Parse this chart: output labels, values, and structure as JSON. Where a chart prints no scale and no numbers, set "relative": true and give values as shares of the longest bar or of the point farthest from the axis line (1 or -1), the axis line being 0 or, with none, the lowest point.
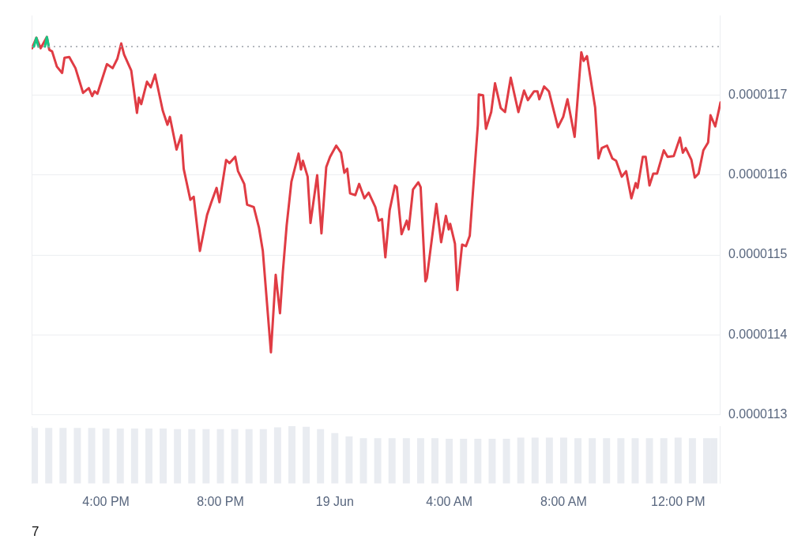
{
  "chart_data": [
    {
      "type": "line",
      "legend": false,
      "grid": "y",
      "tick_labels": "y",
      "marker": "none",
      "line_style": "solid",
      "xlim": [
        "--06-18T13:24",
        "--06-19T13:29"
      ],
      "ylim": [
        1.13e-05,
        1.18e-05
      ],
      "yticks": [
        {
          "value": 1.13e-05,
          "label": "0.0000113"
        },
        {
          "value": 1.14e-05,
          "label": "0.0000114"
        },
        {
          "value": 1.15e-05,
          "label": "0.0000115"
        },
        {
          "value": 1.16e-05,
          "label": "0.0000116"
        },
        {
          "value": 1.17e-05,
          "label": "0.0000117"
        }
      ],
      "ref_lines": [
        {
          "axis": "y",
          "value": 1.1761e-05,
          "color": "#9aa0a8",
          "line_style": "dotted"
        }
      ],
      "series": [
        {
          "color": "#e03c44",
          "x": [
            "--06-18T13:25",
            "--06-18T13:34",
            "--06-18T13:43",
            "--06-18T13:56",
            "--06-18T14:01",
            "--06-18T14:07",
            "--06-18T14:17",
            "--06-18T14:28",
            "--06-18T14:33",
            "--06-18T14:43",
            "--06-18T14:56",
            "--06-18T15:12",
            "--06-18T15:24",
            "--06-18T15:31",
            "--06-18T15:36",
            "--06-18T15:42",
            "--06-18T16:02",
            "--06-18T16:14",
            "--06-18T16:24",
            "--06-18T16:32",
            "--06-18T16:38",
            "--06-18T16:53",
            "--06-18T17:05",
            "--06-18T17:09",
            "--06-18T17:14",
            "--06-18T17:26",
            "--06-18T17:34",
            "--06-18T17:43",
            "--06-18T17:59",
            "--06-18T18:09",
            "--06-18T18:14",
            "--06-18T18:28",
            "--06-18T18:38",
            "--06-18T18:43",
            "--06-18T18:57",
            "--06-18T19:04",
            "--06-18T19:17",
            "--06-18T19:32",
            "--06-18T19:41",
            "--06-18T19:52",
            "--06-18T19:58",
            "--06-18T20:12",
            "--06-18T20:19",
            "--06-18T20:31",
            "--06-18T20:37",
            "--06-18T20:50",
            "--06-18T20:56",
            "--06-18T21:10",
            "--06-18T21:21",
            "--06-18T21:29",
            "--06-18T21:46",
            "--06-18T21:56",
            "--06-18T22:05",
            "--06-18T22:11",
            "--06-18T22:19",
            "--06-18T22:29",
            "--06-18T22:44",
            "--06-18T22:49",
            "--06-18T22:53",
            "--06-18T23:03",
            "--06-18T23:09",
            "--06-18T23:23",
            "--06-18T23:32",
            "--06-18T23:42",
            "--06-18T23:50",
            "--06-19T00:03",
            "--06-19T00:13",
            "--06-19T00:20",
            "--06-19T00:26",
            "--06-19T00:32",
            "--06-19T00:43",
            "--06-19T00:51",
            "--06-19T01:02",
            "--06-19T01:11",
            "--06-19T01:25",
            "--06-19T01:32",
            "--06-19T01:39",
            "--06-19T01:46",
            "--06-19T01:55",
            "--06-19T02:06",
            "--06-19T02:10",
            "--06-19T02:20",
            "--06-19T02:31",
            "--06-19T02:35",
            "--06-19T02:44",
            "--06-19T02:55",
            "--06-19T03:00",
            "--06-19T03:10",
            "--06-19T03:13",
            "--06-19T03:33",
            "--06-19T03:43",
            "--06-19T03:53",
            "--06-19T03:59",
            "--06-19T04:02",
            "--06-19T04:12",
            "--06-19T04:17",
            "--06-19T04:27",
            "--06-19T04:35",
            "--06-19T04:43",
            "--06-19T05:00",
            "--06-19T05:02",
            "--06-19T05:11",
            "--06-19T05:17",
            "--06-19T05:28",
            "--06-19T05:36",
            "--06-19T05:48",
            "--06-19T05:57",
            "--06-19T06:09",
            "--06-19T06:25",
            "--06-19T06:37",
            "--06-19T06:45",
            "--06-19T06:58",
            "--06-19T07:05",
            "--06-19T07:09",
            "--06-19T07:19",
            "--06-19T07:29",
            "--06-19T07:48",
            "--06-19T07:59",
            "--06-19T08:08",
            "--06-19T08:23",
            "--06-19T08:37",
            "--06-19T08:42",
            "--06-19T08:49",
            "--06-19T09:06",
            "--06-19T09:13",
            "--06-19T09:20",
            "--06-19T09:31",
            "--06-19T09:42",
            "--06-19T09:50",
            "--06-19T10:02",
            "--06-19T10:11",
            "--06-19T10:22",
            "--06-19T10:31",
            "--06-19T10:35",
            "--06-19T10:46",
            "--06-19T10:52",
            "--06-19T11:00",
            "--06-19T11:08",
            "--06-19T11:16",
            "--06-19T11:30",
            "--06-19T11:38",
            "--06-19T11:51",
            "--06-19T12:04",
            "--06-19T12:10",
            "--06-19T12:16",
            "--06-19T12:28",
            "--06-19T12:35",
            "--06-19T12:43",
            "--06-19T12:53",
            "--06-19T13:03",
            "--06-19T13:08",
            "--06-19T13:18",
            "--06-19T13:29"
          ],
          "values": [
            1.1759e-05,
            1.1772e-05,
            1.1759e-05,
            1.1773e-05,
            1.1757e-05,
            1.1755e-05,
            1.1736e-05,
            1.1728e-05,
            1.1747e-05,
            1.1748e-05,
            1.1734e-05,
            1.1703e-05,
            1.1709e-05,
            1.1699e-05,
            1.1705e-05,
            1.1702e-05,
            1.1739e-05,
            1.1734e-05,
            1.1746e-05,
            1.1765e-05,
            1.1751e-05,
            1.1731e-05,
            1.1678e-05,
            1.1697e-05,
            1.1689e-05,
            1.1717e-05,
            1.171e-05,
            1.1726e-05,
            1.1681e-05,
            1.1663e-05,
            1.1673e-05,
            1.1632e-05,
            1.165e-05,
            1.1608e-05,
            1.1569e-05,
            1.1573e-05,
            1.1505e-05,
            1.155e-05,
            1.1566e-05,
            1.1584e-05,
            1.1566e-05,
            1.1619e-05,
            1.1615e-05,
            1.1623e-05,
            1.1605e-05,
            1.1589e-05,
            1.1563e-05,
            1.156e-05,
            1.1534e-05,
            1.1505e-05,
            1.1378e-05,
            1.1475e-05,
            1.1427e-05,
            1.1479e-05,
            1.1537e-05,
            1.1592e-05,
            1.1627e-05,
            1.1607e-05,
            1.1618e-05,
            1.1598e-05,
            1.154e-05,
            1.16e-05,
            1.1527e-05,
            1.161e-05,
            1.1623e-05,
            1.1637e-05,
            1.1628e-05,
            1.1603e-05,
            1.1608e-05,
            1.1577e-05,
            1.1575e-05,
            1.1589e-05,
            1.1571e-05,
            1.1578e-05,
            1.156e-05,
            1.1543e-05,
            1.1545e-05,
            1.1497e-05,
            1.1556e-05,
            1.1587e-05,
            1.1585e-05,
            1.1526e-05,
            1.1543e-05,
            1.1532e-05,
            1.1582e-05,
            1.1591e-05,
            1.1585e-05,
            1.1467e-05,
            1.1471e-05,
            1.1564e-05,
            1.1516e-05,
            1.1549e-05,
            1.1532e-05,
            1.1539e-05,
            1.1514e-05,
            1.1456e-05,
            1.1513e-05,
            1.1511e-05,
            1.1524e-05,
            1.1663e-05,
            1.1701e-05,
            1.17e-05,
            1.1658e-05,
            1.1679e-05,
            1.1715e-05,
            1.1684e-05,
            1.1679e-05,
            1.1722e-05,
            1.1679e-05,
            1.1706e-05,
            1.1694e-05,
            1.1705e-05,
            1.1705e-05,
            1.1695e-05,
            1.1711e-05,
            1.1705e-05,
            1.166e-05,
            1.1673e-05,
            1.1695e-05,
            1.1648e-05,
            1.1754e-05,
            1.1743e-05,
            1.1749e-05,
            1.1685e-05,
            1.1621e-05,
            1.1634e-05,
            1.1637e-05,
            1.1621e-05,
            1.1618e-05,
            1.1598e-05,
            1.1605e-05,
            1.1571e-05,
            1.159e-05,
            1.1584e-05,
            1.1623e-05,
            1.1623e-05,
            1.1587e-05,
            1.1602e-05,
            1.1602e-05,
            1.1631e-05,
            1.1623e-05,
            1.1624e-05,
            1.1647e-05,
            1.1628e-05,
            1.1634e-05,
            1.1619e-05,
            1.1597e-05,
            1.1602e-05,
            1.1631e-05,
            1.1641e-05,
            1.1675e-05,
            1.1661e-05,
            1.1691e-05
          ]
        },
        {
          "color": "#16c784",
          "x": [
            "--06-18T13:29",
            "--06-18T13:34",
            "--06-18T13:38",
            "--06-18T13:48",
            "--06-18T13:52",
            "--06-18T13:56",
            "--06-18T14:00"
          ],
          "values": [
            1.1761e-05,
            1.1772e-05,
            1.1761e-05,
            null,
            1.1761e-05,
            1.1773e-05,
            1.1761e-05
          ]
        }
      ]
    },
    {
      "type": "bar",
      "relative": true,
      "legend": false,
      "grid": false,
      "tick_labels": "x",
      "color": "#e9ecf1",
      "xlim": [
        "--06-18T13:24",
        "--06-19T13:29"
      ],
      "xticks": [
        {
          "value": "--06-18T16:00",
          "label": "4:00 PM"
        },
        {
          "value": "--06-18T20:00",
          "label": "8:00 PM"
        },
        {
          "value": "--06-19T00:00",
          "label": "19 Jun"
        },
        {
          "value": "--06-19T04:00",
          "label": "4:00 AM"
        },
        {
          "value": "--06-19T08:00",
          "label": "8:00 AM"
        },
        {
          "value": "--06-19T12:00",
          "label": "12:00 PM"
        }
      ],
      "x": [
        "--06-18T13:30",
        "--06-18T14:00",
        "--06-18T14:30",
        "--06-18T15:00",
        "--06-18T15:30",
        "--06-18T16:00",
        "--06-18T16:30",
        "--06-18T17:00",
        "--06-18T17:30",
        "--06-18T18:00",
        "--06-18T18:30",
        "--06-18T19:00",
        "--06-18T19:30",
        "--06-18T20:00",
        "--06-18T20:30",
        "--06-18T21:00",
        "--06-18T21:30",
        "--06-18T22:00",
        "--06-18T22:30",
        "--06-18T23:00",
        "--06-18T23:30",
        "--06-19T00:00",
        "--06-19T00:30",
        "--06-19T01:00",
        "--06-19T01:30",
        "--06-19T02:00",
        "--06-19T02:30",
        "--06-19T03:00",
        "--06-19T03:30",
        "--06-19T04:00",
        "--06-19T04:30",
        "--06-19T05:00",
        "--06-19T05:30",
        "--06-19T06:00",
        "--06-19T06:30",
        "--06-19T07:00",
        "--06-19T07:30",
        "--06-19T08:00",
        "--06-19T08:30",
        "--06-19T09:00",
        "--06-19T09:30",
        "--06-19T10:00",
        "--06-19T10:30",
        "--06-19T11:00",
        "--06-19T11:30",
        "--06-19T12:00",
        "--06-19T12:30",
        "--06-19T13:00",
        "--06-19T13:15"
      ],
      "values": [
        0.97,
        0.97,
        0.97,
        0.97,
        0.97,
        0.96,
        0.96,
        0.96,
        0.96,
        0.96,
        0.95,
        0.95,
        0.95,
        0.95,
        0.95,
        0.95,
        0.95,
        0.98,
        1,
        0.99,
        0.95,
        0.88,
        0.82,
        0.79,
        0.79,
        0.79,
        0.79,
        0.79,
        0.79,
        0.78,
        0.78,
        0.78,
        0.78,
        0.78,
        0.8,
        0.8,
        0.8,
        0.8,
        0.79,
        0.79,
        0.79,
        0.79,
        0.79,
        0.79,
        0.79,
        0.8,
        0.79,
        0.79,
        0.79
      ],
      "annotations": [
        "7"
      ]
    }
  ]
}
